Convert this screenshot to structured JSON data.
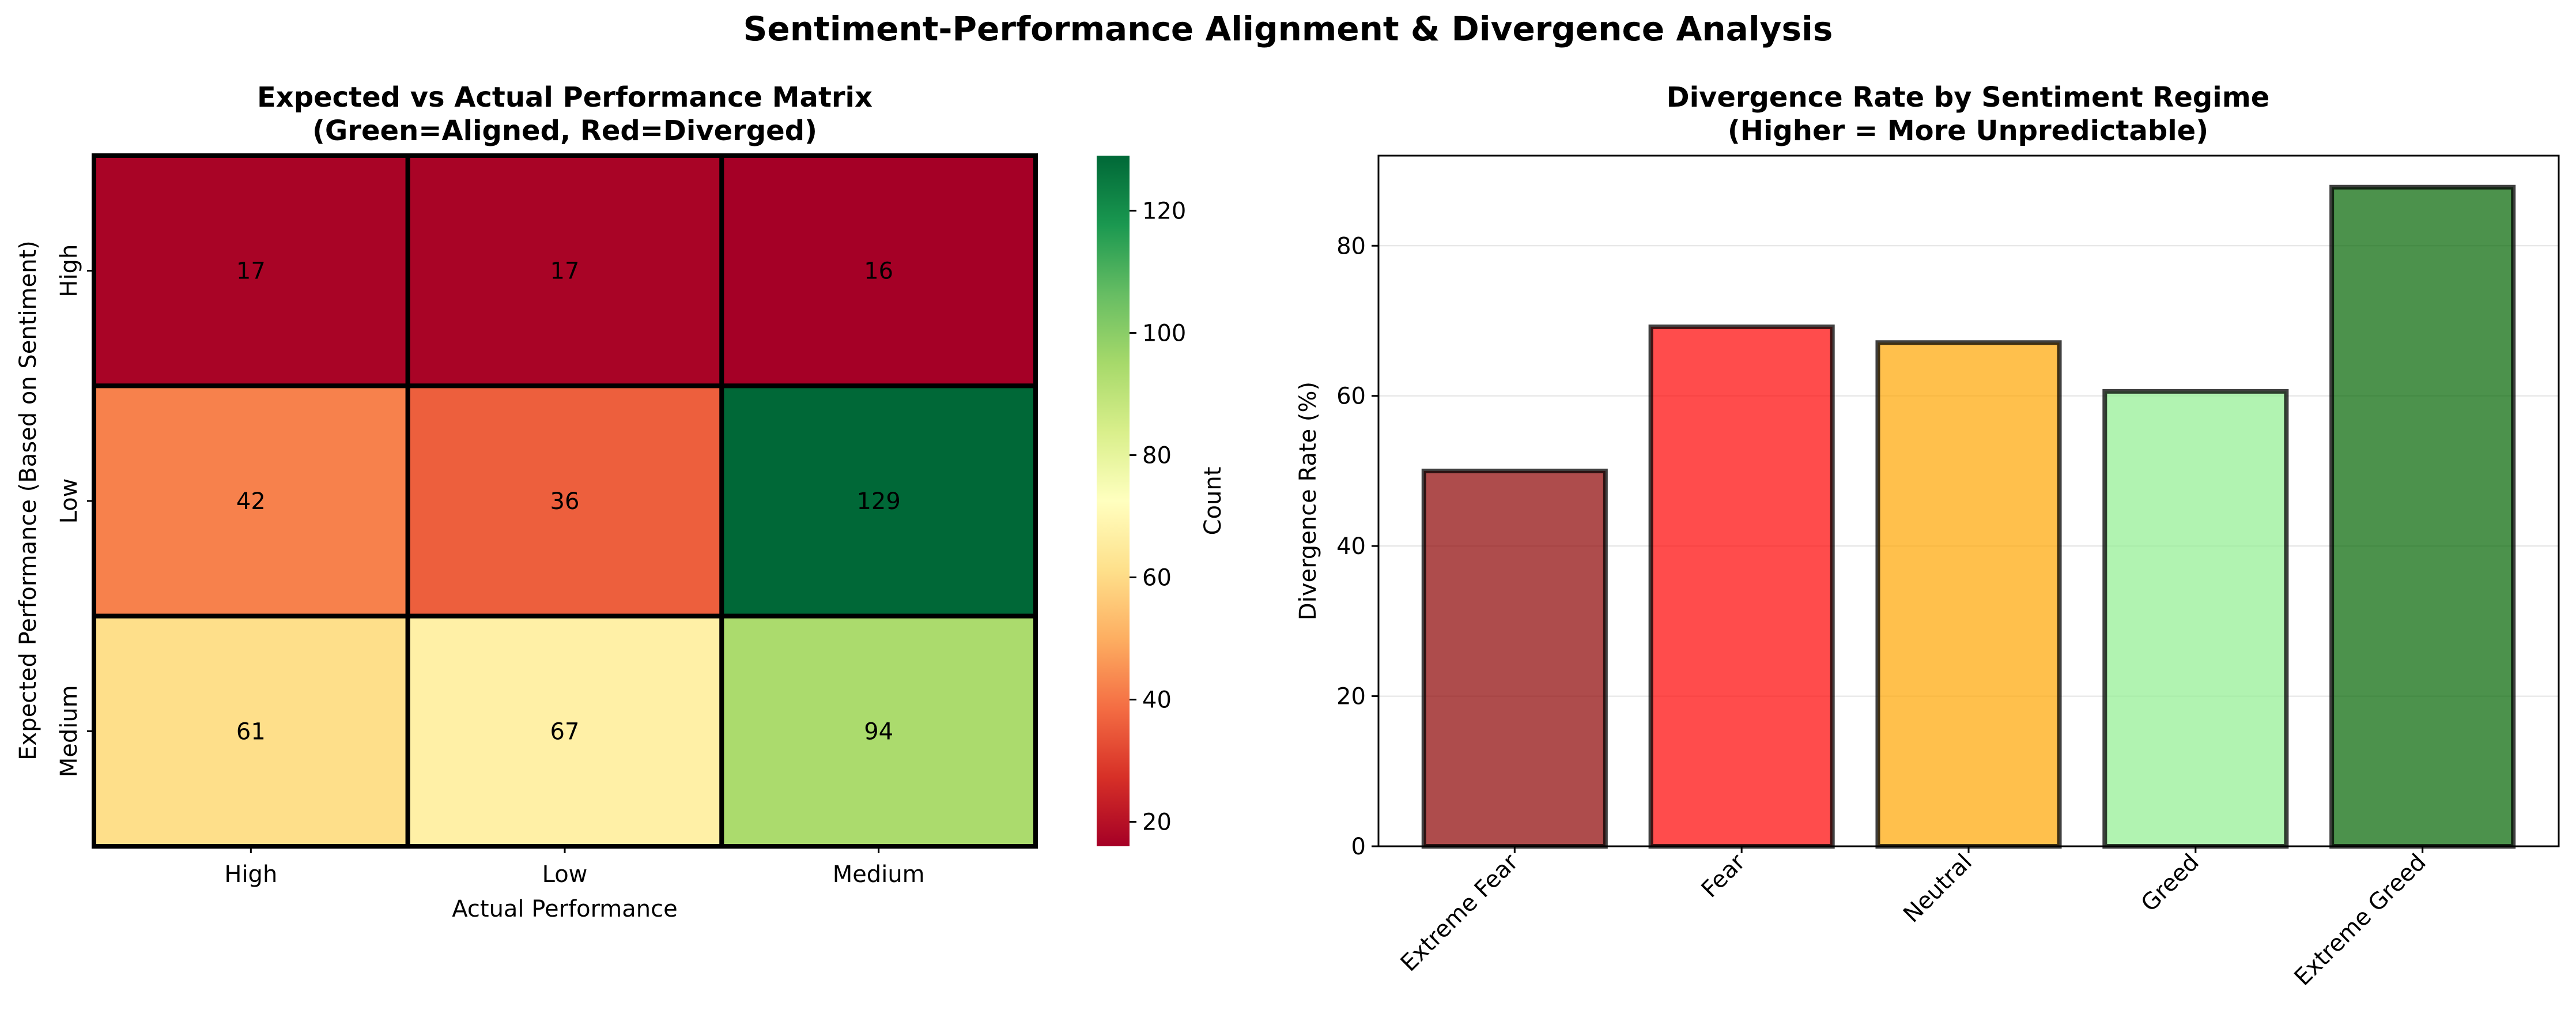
{
  "figure": {
    "title": "Sentiment-Performance Alignment & Divergence Analysis"
  },
  "chart_data": [
    {
      "type": "heatmap",
      "title_line1": "Expected vs Actual Performance Matrix",
      "title_line2": "(Green=Aligned, Red=Diverged)",
      "xlabel": "Actual Performance",
      "ylabel": "Expected Performance (Based on Sentiment)",
      "x_categories": [
        "High",
        "Low",
        "Medium"
      ],
      "y_categories": [
        "High",
        "Low",
        "Medium"
      ],
      "values": [
        [
          17,
          17,
          16
        ],
        [
          42,
          36,
          129
        ],
        [
          61,
          67,
          94
        ]
      ],
      "colormap": "RdYlGn",
      "colorbar": {
        "label": "Count",
        "range": [
          16,
          129
        ],
        "ticks": [
          20,
          40,
          60,
          80,
          100,
          120
        ]
      }
    },
    {
      "type": "bar",
      "title_line1": "Divergence Rate by Sentiment Regime",
      "title_line2": "(Higher = More Unpredictable)",
      "xlabel": "",
      "ylabel": "Divergence Rate (%)",
      "categories": [
        "Extreme Fear",
        "Fear",
        "Neutral",
        "Greed",
        "Extreme Greed"
      ],
      "values": [
        50.0,
        69.2,
        67.1,
        60.6,
        87.8
      ],
      "colors": [
        "#8b0000",
        "#ff0000",
        "#ffa500",
        "#90ee90",
        "#006400"
      ],
      "ylim": [
        0,
        92
      ],
      "yticks": [
        0,
        20,
        40,
        60,
        80
      ],
      "grid": "y"
    }
  ]
}
